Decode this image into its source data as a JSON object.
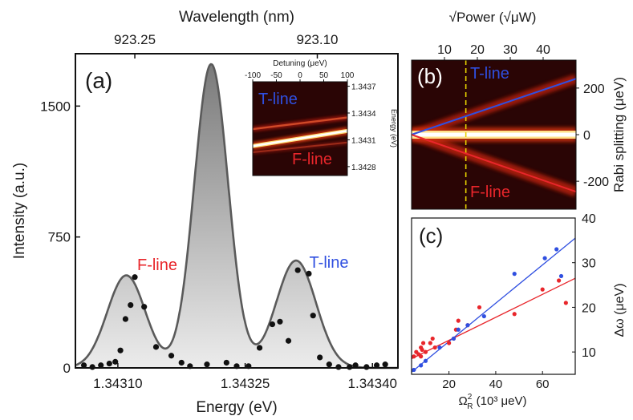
{
  "colors": {
    "f_line": "#e8262b",
    "t_line": "#2f4fe0",
    "peak_fill": "#cfcfcf",
    "heat_bg": "#2a0505",
    "guide": "#e6d200"
  },
  "chart_data": [
    {
      "id": "a",
      "type": "line",
      "panel_label": "(a)",
      "xlabel": "Energy (eV)",
      "ylabel": "Intensity (a.u.)",
      "top_xlabel": "Wavelength (nm)",
      "xlim": [
        1.34305,
        1.34343
      ],
      "ylim": [
        0,
        1800
      ],
      "xticks": [
        1.3431,
        1.34325,
        1.3434
      ],
      "xtick_labels": [
        "1.34310",
        "1.34325",
        "1.34340"
      ],
      "yticks": [
        0,
        750,
        1500
      ],
      "ytick_labels": [
        "0",
        "750",
        "1500"
      ],
      "top_ticks": [
        {
          "label": "923.25",
          "energy": 1.34312
        },
        {
          "label": "923.10",
          "energy": 1.343335
        }
      ],
      "annotations": {
        "f_line": "F-line",
        "t_line": "T-line"
      },
      "fit_peaks": [
        {
          "center": 1.34311,
          "amp": 530,
          "sigma": 2.25e-05
        },
        {
          "center": 1.34321,
          "amp": 1740,
          "sigma": 2e-05
        },
        {
          "center": 1.34331,
          "amp": 615,
          "sigma": 2.35e-05
        }
      ],
      "points": {
        "x": [
          1.34306,
          1.34307,
          1.34308,
          1.34309,
          1.343097,
          1.343103,
          1.343109,
          1.343115,
          1.34312,
          1.343131,
          1.343145,
          1.343163,
          1.343175,
          1.343185,
          1.343205,
          1.343228,
          1.34324,
          1.343254,
          1.343267,
          1.343282,
          1.343291,
          1.343301,
          1.343312,
          1.343325,
          1.34333,
          1.343338,
          1.343349,
          1.34336,
          1.343373,
          1.34338,
          1.343393,
          1.343405,
          1.343415
        ],
        "y": [
          15,
          5,
          15,
          25,
          35,
          100,
          280,
          360,
          520,
          350,
          120,
          70,
          30,
          10,
          20,
          30,
          10,
          10,
          115,
          250,
          265,
          155,
          560,
          540,
          300,
          60,
          20,
          5,
          5,
          15,
          5,
          15,
          20
        ]
      }
    },
    {
      "id": "a-inset",
      "type": "heatmap",
      "xlabel": "Detuning (μeV)",
      "ylabel": "Energy (eV)",
      "xlim": [
        -100,
        100
      ],
      "ylim": [
        1.3427,
        1.34375
      ],
      "xticks": [
        -100,
        -50,
        0,
        50,
        100
      ],
      "xtick_labels": [
        "-100",
        "-50",
        "0",
        "50",
        "100"
      ],
      "yticks": [
        1.3437,
        1.3434,
        1.3431,
        1.3428
      ],
      "ytick_labels": [
        "1.3437",
        "1.3434",
        "1.3431",
        "1.3428"
      ],
      "annotations": {
        "t_line": "T-line",
        "f_line": "F-line"
      },
      "branches": [
        {
          "name": "center",
          "e_left": 1.34303,
          "e_right": 1.3432,
          "intensity": 1.0
        },
        {
          "name": "upper",
          "e_left": 1.34322,
          "e_right": 1.34335,
          "intensity": 0.7
        },
        {
          "name": "lower",
          "e_left": 1.34296,
          "e_right": 1.34307,
          "intensity": 0.55
        }
      ]
    },
    {
      "id": "b",
      "type": "heatmap",
      "panel_label": "(b)",
      "top_xlabel": "√Power (√μW)",
      "ylabel": "Rabi splitting (μeV)",
      "xlim": [
        0,
        50
      ],
      "ylim": [
        -320,
        320
      ],
      "top_xticks": [
        10,
        20,
        30,
        40
      ],
      "top_xtick_labels": [
        "10",
        "20",
        "30",
        "40"
      ],
      "yticks": [
        200,
        0,
        -200
      ],
      "ytick_labels": [
        "200",
        "0",
        "-200"
      ],
      "annotations": {
        "t_line": "T-line",
        "f_line": "F-line"
      },
      "guide_x": 16.5,
      "t_fit": {
        "x": [
          0,
          50
        ],
        "y": [
          0,
          240
        ]
      },
      "f_fit": {
        "x": [
          0,
          50
        ],
        "y": [
          0,
          -245
        ]
      }
    },
    {
      "id": "c",
      "type": "scatter",
      "panel_label": "(c)",
      "xlabel_main": "Ω",
      "xlabel_sup": "2",
      "xlabel_sub": "R",
      "xlabel_rest": " (10³ μeV)",
      "ylabel": "Δω (μeV)",
      "xlim": [
        4,
        74
      ],
      "ylim": [
        5,
        40
      ],
      "xticks": [
        20,
        40,
        60
      ],
      "xtick_labels": [
        "20",
        "40",
        "60"
      ],
      "yticks": [
        10,
        20,
        30,
        40
      ],
      "ytick_labels": [
        "10",
        "20",
        "30",
        "40"
      ],
      "series": [
        {
          "name": "F-line",
          "color_key": "f_line",
          "x": [
            5,
            6,
            7,
            8,
            8,
            8.5,
            9,
            10,
            12,
            13,
            14,
            20,
            22,
            23,
            24,
            28,
            33,
            48,
            60,
            67,
            70
          ],
          "y": [
            9,
            10,
            9.5,
            9,
            11,
            10.5,
            12,
            10,
            12,
            13,
            11,
            12,
            13,
            15,
            17,
            16,
            20,
            18.5,
            24,
            26,
            21
          ],
          "fit": {
            "x": [
              4,
              74
            ],
            "y": [
              8.5,
              26.5
            ]
          }
        },
        {
          "name": "T-line",
          "color_key": "t_line",
          "x": [
            5,
            8,
            10,
            16,
            22,
            24,
            28,
            35,
            48,
            61,
            66,
            68
          ],
          "y": [
            6,
            7,
            8,
            11,
            13,
            15,
            16,
            18,
            27.5,
            31,
            33,
            27
          ],
          "fit": {
            "x": [
              4,
              74
            ],
            "y": [
              5.5,
              35.5
            ]
          }
        }
      ]
    }
  ]
}
